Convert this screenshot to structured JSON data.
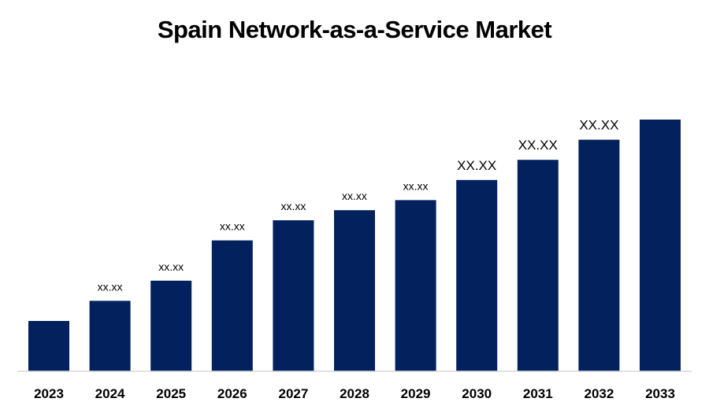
{
  "chart_data": {
    "type": "bar",
    "title": "Spain Network-as-a-Service Market",
    "categories": [
      "2023",
      "2024",
      "2025",
      "2026",
      "2027",
      "2028",
      "2029",
      "2030",
      "2031",
      "2032",
      "2033"
    ],
    "values": [
      20,
      28,
      36,
      52,
      60,
      64,
      68,
      76,
      84,
      92,
      100
    ],
    "data_labels": [
      "",
      "xx.xx",
      "xx.xx",
      "xx.xx",
      "xx.xx",
      "xx.xx",
      "xx.xx",
      "XX.XX",
      "XX.XX",
      "XX.XX",
      ""
    ],
    "ylim": [
      0,
      100
    ],
    "grid": false,
    "legend": "none",
    "bar_color": "#03215d",
    "axis_color": "#d9d9d9"
  }
}
